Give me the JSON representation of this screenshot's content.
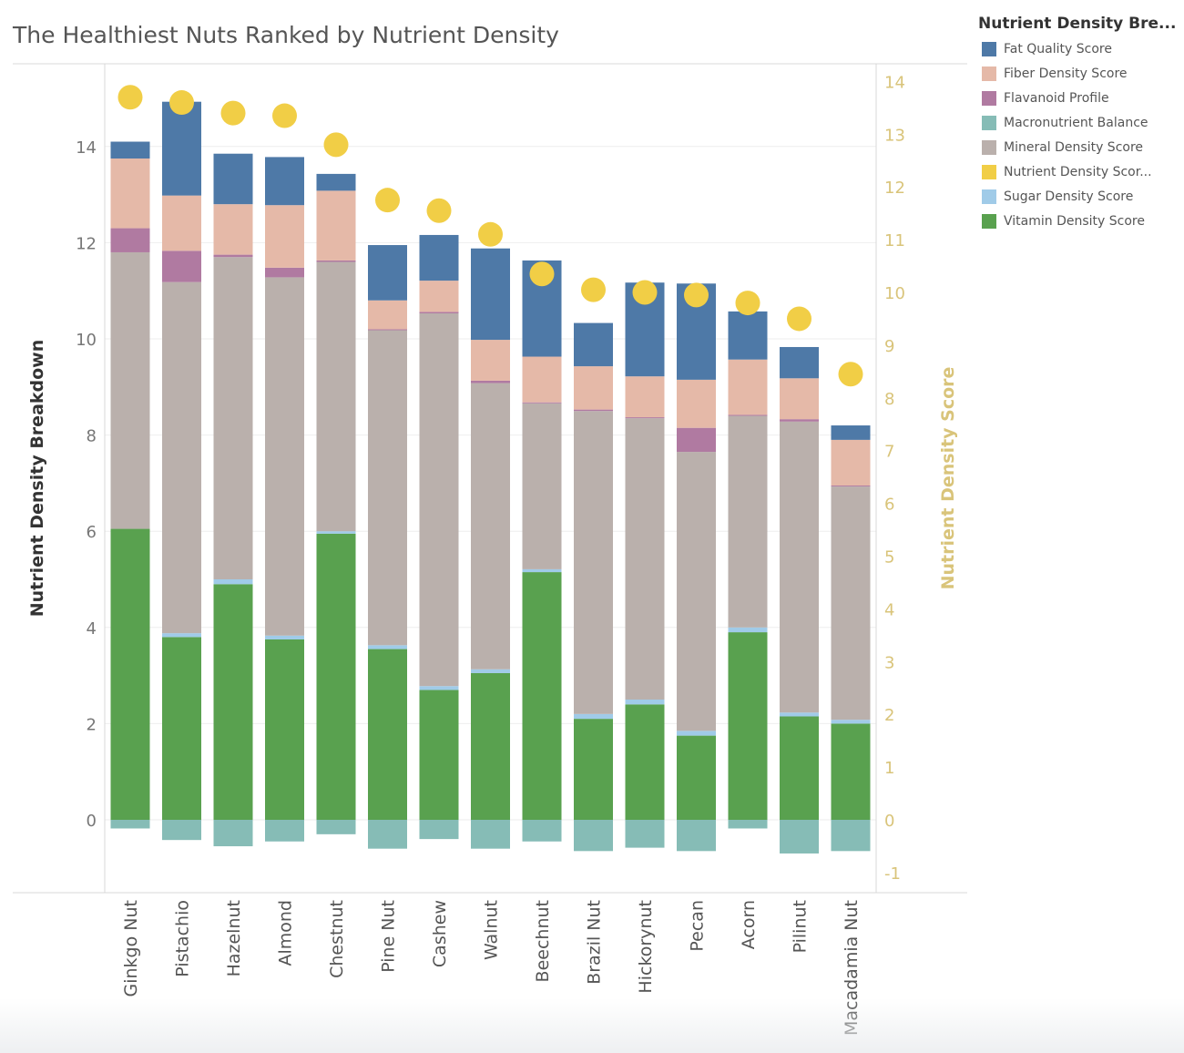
{
  "chart_data": {
    "type": "bar",
    "title": "The Healthiest Nuts Ranked by Nutrient Density",
    "ylabel": "Nutrient Density Breakdown",
    "y2label": "Nutrient Density Score",
    "ylim": [
      -1.5,
      15.5
    ],
    "y2lim": [
      -1.2,
      14.8
    ],
    "yticks": [
      0,
      2,
      4,
      6,
      8,
      10,
      12,
      14
    ],
    "y2ticks": [
      -1,
      0,
      1,
      2,
      3,
      4,
      5,
      6,
      7,
      8,
      9,
      10,
      11,
      12,
      13,
      14
    ],
    "grid": true,
    "legend_position": "top-right",
    "categories": [
      "Ginkgo Nut",
      "Pistachio",
      "Hazelnut",
      "Almond",
      "Chestnut",
      "Pine Nut",
      "Cashew",
      "Walnut",
      "Beechnut",
      "Brazil Nut",
      "Hickorynut",
      "Pecan",
      "Acorn",
      "Pilinut",
      "Macadamia Nut"
    ],
    "legend": {
      "title": "Nutrient Density Bre...",
      "items": [
        {
          "label": "Fat Quality Score",
          "color": "#4e79a7"
        },
        {
          "label": "Fiber Density Score",
          "color": "#e5b9a8"
        },
        {
          "label": "Flavanoid Profile",
          "color": "#b07aa1"
        },
        {
          "label": "Macronutrient Balance",
          "color": "#86bcb6"
        },
        {
          "label": "Mineral Density Score",
          "color": "#bab0ac"
        },
        {
          "label": "Nutrient Density Scor...",
          "color": "#f1ce46"
        },
        {
          "label": "Sugar Density Score",
          "color": "#a0cbe8"
        },
        {
          "label": "Vitamin Density Score",
          "color": "#59a14f"
        }
      ]
    },
    "series": [
      {
        "name": "Vitamin Density Score",
        "color": "#59a14f",
        "values": [
          6.05,
          3.8,
          4.9,
          3.75,
          5.95,
          3.55,
          2.7,
          3.05,
          5.15,
          2.1,
          2.4,
          1.75,
          3.9,
          2.15,
          2.0
        ]
      },
      {
        "name": "Sugar Density Score",
        "color": "#a0cbe8",
        "values": [
          0.0,
          0.08,
          0.1,
          0.08,
          0.05,
          0.08,
          0.08,
          0.08,
          0.06,
          0.1,
          0.1,
          0.1,
          0.1,
          0.08,
          0.08
        ]
      },
      {
        "name": "Mineral Density Score",
        "color": "#bab0ac",
        "values": [
          5.75,
          7.3,
          6.7,
          7.45,
          5.6,
          6.55,
          7.75,
          5.95,
          3.45,
          6.3,
          5.85,
          5.8,
          4.4,
          6.05,
          4.85
        ]
      },
      {
        "name": "Flavanoid Profile",
        "color": "#b07aa1",
        "values": [
          0.5,
          0.65,
          0.05,
          0.2,
          0.03,
          0.02,
          0.03,
          0.05,
          0.02,
          0.03,
          0.02,
          0.5,
          0.02,
          0.05,
          0.02
        ]
      },
      {
        "name": "Fiber Density Score",
        "color": "#e5b9a8",
        "values": [
          1.45,
          1.15,
          1.05,
          1.3,
          1.45,
          0.6,
          0.65,
          0.85,
          0.95,
          0.9,
          0.85,
          1.0,
          1.15,
          0.85,
          0.95
        ]
      },
      {
        "name": "Fat Quality Score",
        "color": "#4e79a7",
        "values": [
          0.35,
          1.95,
          1.05,
          1.0,
          0.35,
          1.15,
          0.95,
          1.9,
          2.0,
          0.9,
          1.95,
          2.0,
          1.0,
          0.65,
          0.3
        ]
      },
      {
        "name": "Macronutrient Balance",
        "color": "#86bcb6",
        "values": [
          -0.18,
          -0.42,
          -0.55,
          -0.45,
          -0.3,
          -0.6,
          -0.4,
          -0.6,
          -0.45,
          -0.65,
          -0.58,
          -0.65,
          -0.18,
          -0.7,
          -0.65
        ]
      },
      {
        "name": "Nutrient Density Score",
        "color": "#f1ce46",
        "axis": "secondary",
        "values": [
          13.7,
          13.6,
          13.4,
          13.35,
          12.8,
          11.75,
          11.55,
          11.1,
          10.35,
          10.05,
          10.0,
          9.95,
          9.8,
          9.5,
          8.45
        ]
      }
    ]
  }
}
